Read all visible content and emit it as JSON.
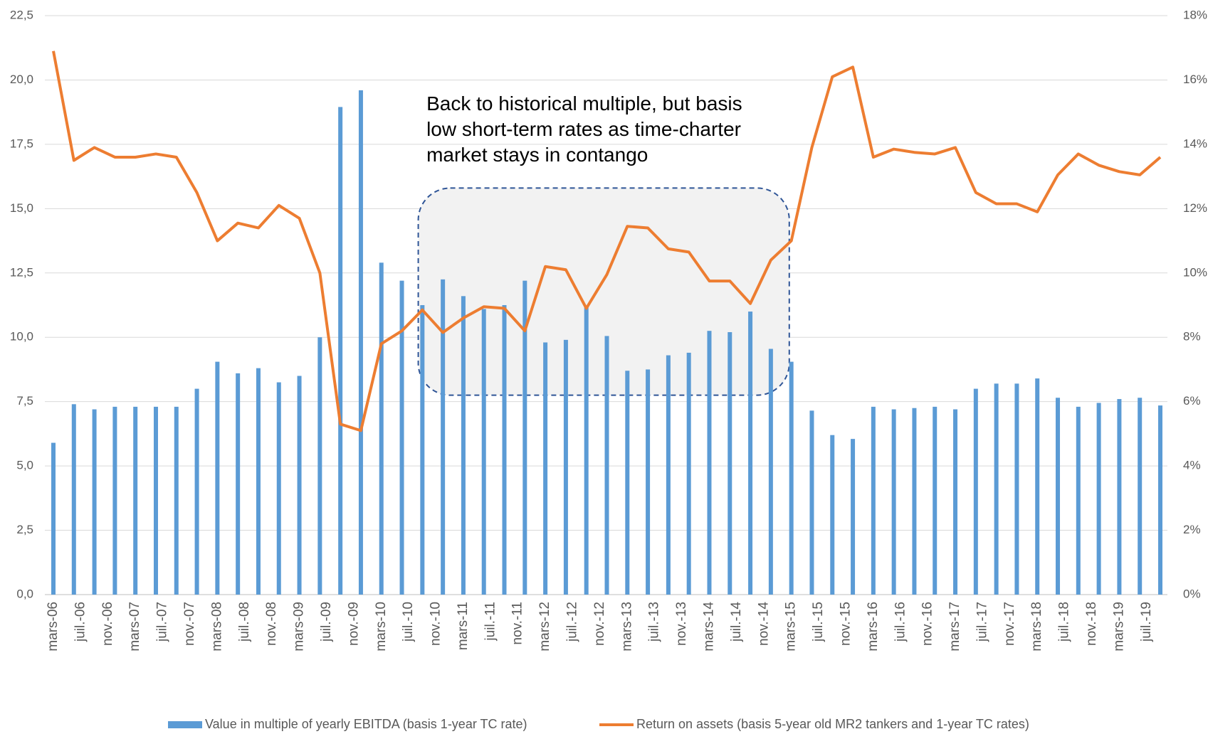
{
  "chart_data": {
    "type": "bar_line",
    "annotation": [
      "Back to historical multiple, but basis",
      "low short-term rates as time-charter",
      "market stays in contango"
    ],
    "xticks": [
      "mars-06",
      "juil.-06",
      "nov.-06",
      "mars-07",
      "juil.-07",
      "nov.-07",
      "mars-08",
      "juil.-08",
      "nov.-08",
      "mars-09",
      "juil.-09",
      "nov.-09",
      "mars-10",
      "juil.-10",
      "nov.-10",
      "mars-11",
      "juil.-11",
      "nov.-11",
      "mars-12",
      "juil.-12",
      "nov.-12",
      "mars-13",
      "juil.-13",
      "nov.-13",
      "mars-14",
      "juil.-14",
      "nov.-14",
      "mars-15",
      "juil.-15",
      "nov.-15",
      "mars-16",
      "juil.-16",
      "nov.-16",
      "mars-17",
      "juil.-17",
      "nov.-17",
      "mars-18",
      "juil.-18",
      "nov.-18",
      "mars-19",
      "juil.-19"
    ],
    "ylim": [
      0,
      22.5
    ],
    "yticks": [
      {
        "value": 0,
        "label": "0,0"
      },
      {
        "value": 2.5,
        "label": "2,5"
      },
      {
        "value": 5,
        "label": "5,0"
      },
      {
        "value": 7.5,
        "label": "7,5"
      },
      {
        "value": 10,
        "label": "10,0"
      },
      {
        "value": 12.5,
        "label": "12,5"
      },
      {
        "value": 15,
        "label": "15,0"
      },
      {
        "value": 17.5,
        "label": "17,5"
      },
      {
        "value": 20,
        "label": "20,0"
      },
      {
        "value": 22.5,
        "label": "22,5"
      }
    ],
    "y2lim": [
      0,
      18
    ],
    "y2ticks": [
      {
        "value": 0,
        "label": "0%"
      },
      {
        "value": 2,
        "label": "2%"
      },
      {
        "value": 4,
        "label": "4%"
      },
      {
        "value": 6,
        "label": "6%"
      },
      {
        "value": 8,
        "label": "8%"
      },
      {
        "value": 10,
        "label": "10%"
      },
      {
        "value": 12,
        "label": "12%"
      },
      {
        "value": 14,
        "label": "14%"
      },
      {
        "value": 16,
        "label": "16%"
      },
      {
        "value": 18,
        "label": "18%"
      }
    ],
    "grid": true,
    "series": [
      {
        "name": "Value in multiple of yearly EBITDA (basis 1-year TC rate)",
        "type": "bar",
        "color": "#5b9bd5",
        "values": [
          5.9,
          7.4,
          7.2,
          7.3,
          7.3,
          7.3,
          7.3,
          8.0,
          9.05,
          8.6,
          8.8,
          8.25,
          8.5,
          10.0,
          18.95,
          19.6,
          12.9,
          12.2,
          11.25,
          12.25,
          11.6,
          11.1,
          11.25,
          12.2,
          9.8,
          9.9,
          11.2,
          10.05,
          8.7,
          8.75,
          9.3,
          9.4,
          10.25,
          10.2,
          11.0,
          9.55,
          9.05,
          7.15,
          6.2,
          6.05,
          7.3,
          7.2,
          7.25,
          7.3,
          7.2,
          8.0,
          8.2,
          8.2,
          8.4,
          7.65,
          7.3,
          7.45,
          7.6,
          7.65,
          7.35
        ]
      },
      {
        "name": "Return on assets (basis 5-year old MR2 tankers and 1-year TC rates)",
        "type": "line",
        "axis": "y2",
        "color": "#ed7d31",
        "values": [
          16.9,
          13.5,
          13.9,
          13.6,
          13.6,
          13.7,
          13.6,
          12.5,
          11.0,
          11.55,
          11.4,
          12.1,
          11.7,
          10.0,
          5.3,
          5.1,
          7.8,
          8.2,
          8.85,
          8.15,
          8.6,
          8.95,
          8.9,
          8.2,
          10.2,
          10.1,
          8.9,
          9.95,
          11.45,
          11.4,
          10.75,
          10.65,
          9.75,
          9.75,
          9.05,
          10.4,
          11.0,
          13.9,
          16.1,
          16.4,
          13.6,
          13.85,
          13.75,
          13.7,
          13.9,
          12.5,
          12.15,
          12.15,
          11.9,
          13.05,
          13.7,
          13.35,
          13.15,
          13.05,
          13.6
        ]
      }
    ]
  }
}
